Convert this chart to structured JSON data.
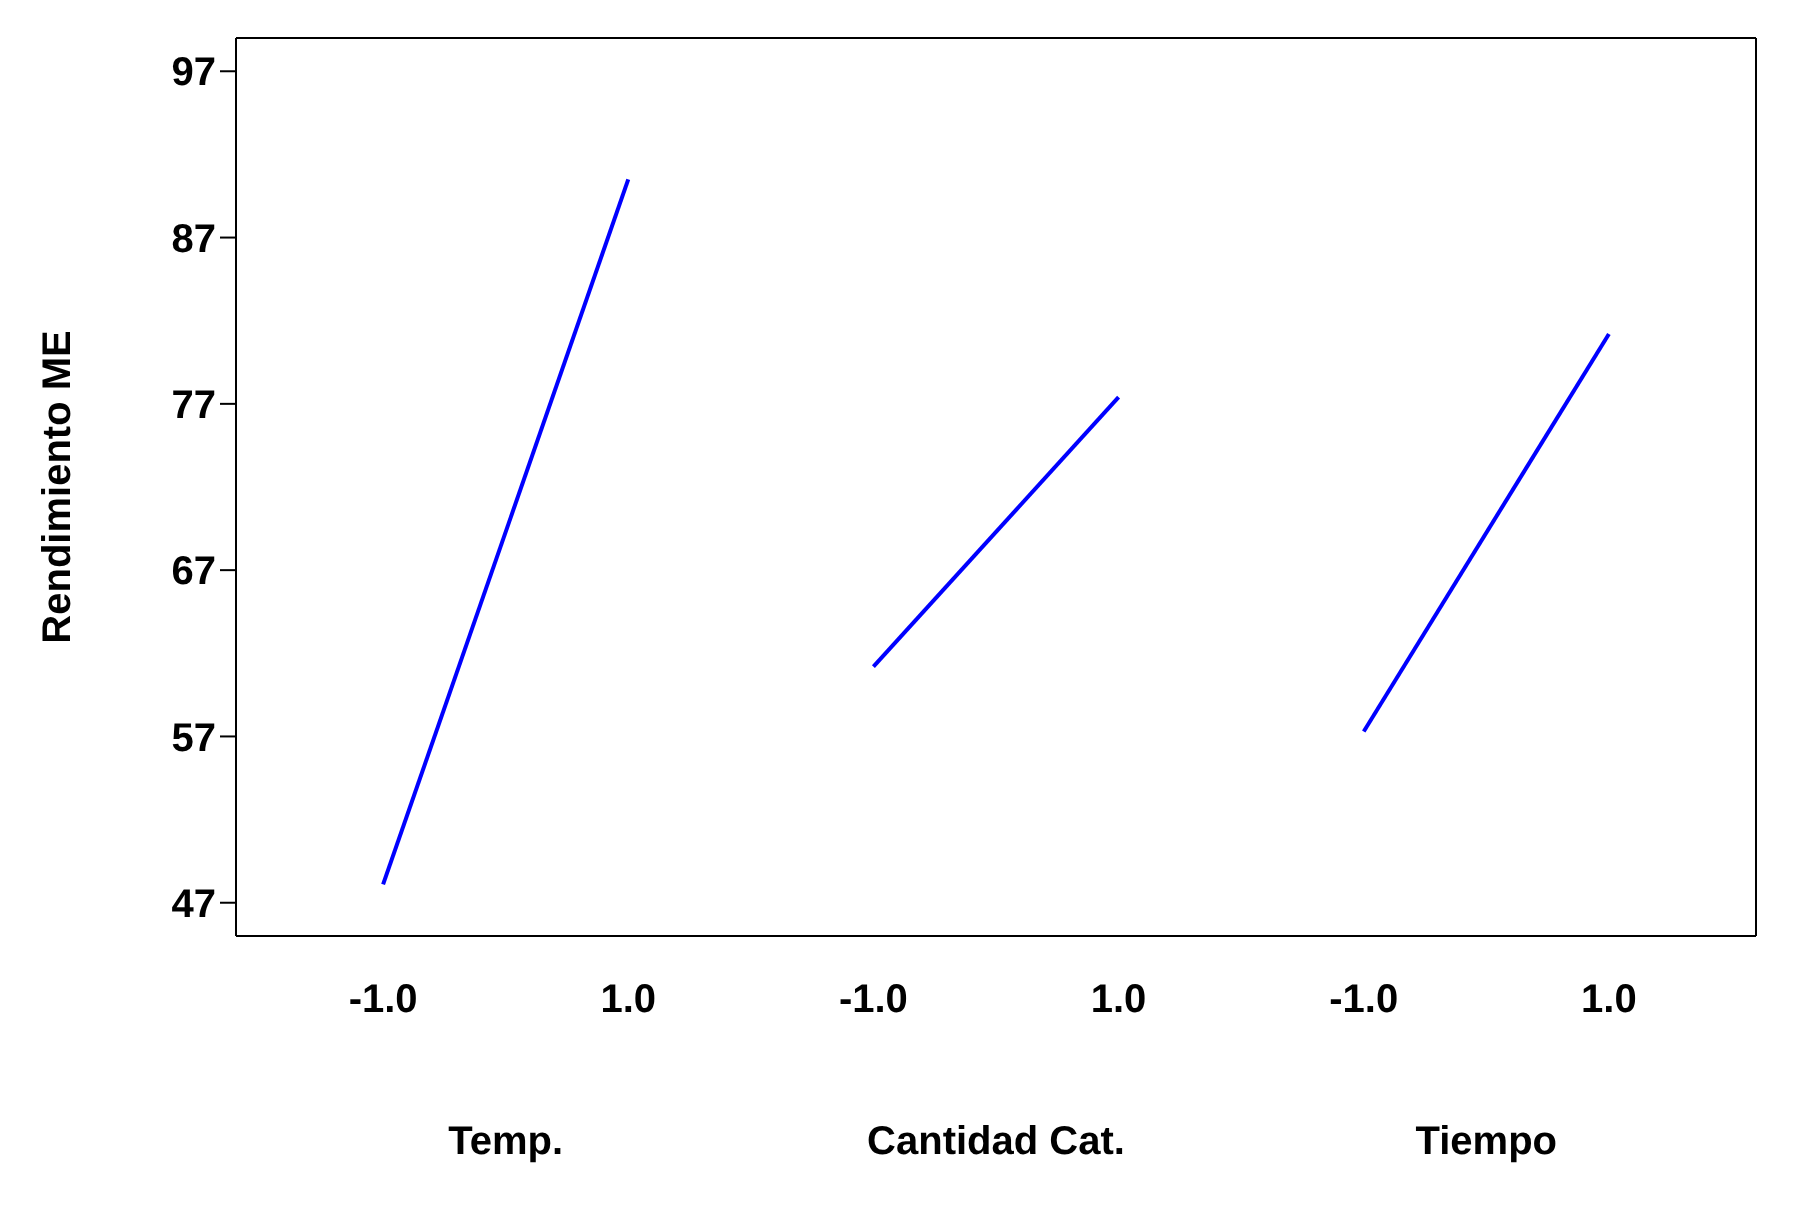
{
  "chart_data": {
    "type": "line",
    "ylabel": "Rendimiento ME",
    "categories": [
      "-1.0",
      "1.0",
      "-1.0",
      "1.0",
      "-1.0",
      "1.0"
    ],
    "series": [
      {
        "color": "#0000ff",
        "values": [
          48.1,
          90.5,
          null,
          null,
          null,
          null
        ]
      },
      {
        "color": "#0000ff",
        "values": [
          null,
          null,
          61.2,
          77.4,
          null,
          null
        ]
      },
      {
        "color": "#0000ff",
        "values": [
          null,
          null,
          null,
          null,
          57.3,
          81.2
        ]
      }
    ],
    "annotations": [
      "Temp.",
      "Cantidad Cat.",
      "Tiempo"
    ],
    "ylim": [
      45,
      99
    ],
    "yticks": [
      47,
      57,
      67,
      77,
      87,
      97
    ],
    "marker": "none",
    "line_style": "solid"
  }
}
